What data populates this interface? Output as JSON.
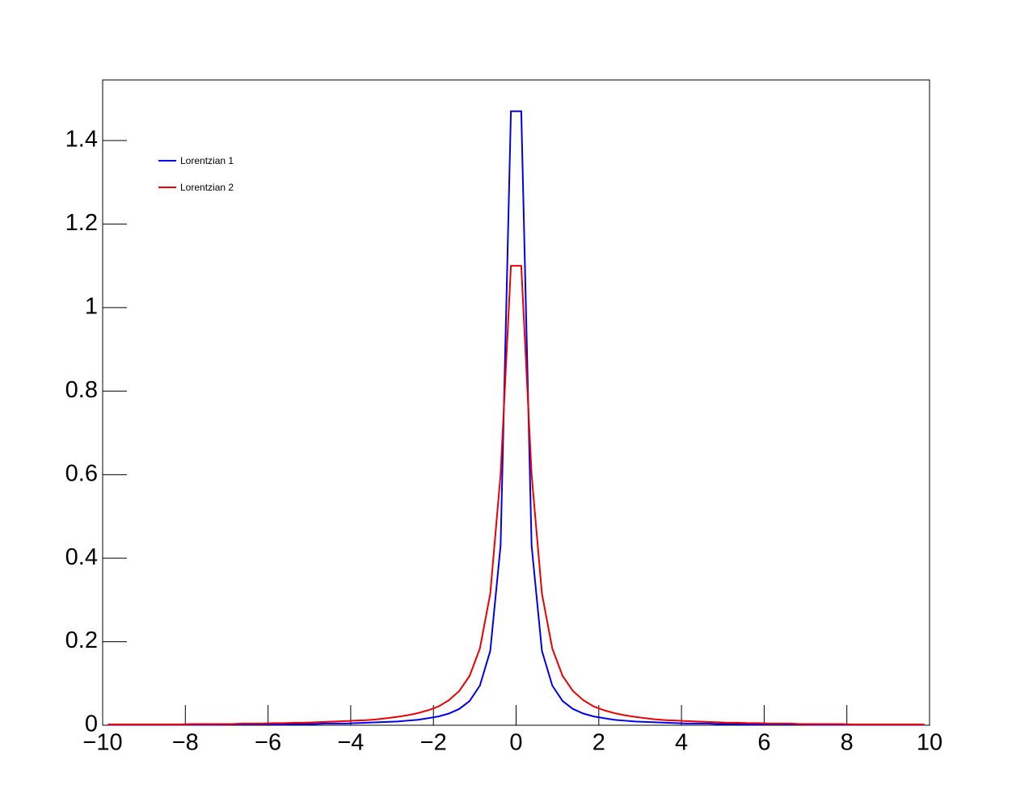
{
  "chart_data": {
    "type": "line",
    "legend": "upper left",
    "xlim": [
      -10,
      10
    ],
    "ylim": [
      0,
      1.545
    ],
    "xticks": [
      {
        "value": -10,
        "label": "−10"
      },
      {
        "value": -8,
        "label": "−8"
      },
      {
        "value": -6,
        "label": "−6"
      },
      {
        "value": -4,
        "label": "−4"
      },
      {
        "value": -2,
        "label": "−2"
      },
      0,
      2,
      4,
      6,
      8,
      10
    ],
    "yticks": [
      0,
      0.2,
      0.4,
      0.6,
      0.8,
      1,
      1.2,
      1.4
    ],
    "x": [
      -9.875,
      -9.625,
      -9.375,
      -9.125,
      -8.875,
      -8.625,
      -8.375,
      -8.125,
      -7.875,
      -7.625,
      -7.375,
      -7.125,
      -6.875,
      -6.625,
      -6.375,
      -6.125,
      -5.875,
      -5.625,
      -5.375,
      -5.125,
      -4.875,
      -4.625,
      -4.375,
      -4.125,
      -3.875,
      -3.625,
      -3.375,
      -3.125,
      -2.875,
      -2.625,
      -2.375,
      -2.125,
      -1.875,
      -1.625,
      -1.375,
      -1.125,
      -0.875,
      -0.625,
      -0.375,
      -0.125,
      0.125,
      0.375,
      0.625,
      0.875,
      1.125,
      1.375,
      1.625,
      1.875,
      2.125,
      2.375,
      2.625,
      2.875,
      3.125,
      3.375,
      3.625,
      3.875,
      4.125,
      4.375,
      4.625,
      4.875,
      5.125,
      5.375,
      5.625,
      5.875,
      6.125,
      6.375,
      6.625,
      6.875,
      7.125,
      7.375,
      7.625,
      7.875,
      8.125,
      8.375,
      8.625,
      8.875,
      9.125,
      9.375,
      9.625,
      9.875
    ],
    "series": [
      {
        "name": "Lorentzian 1",
        "color": "#0000ee",
        "values": [
          0.001,
          0.001,
          0.001,
          0.001,
          0.001,
          0.001,
          0.001,
          0.001,
          0.001,
          0.001,
          0.001,
          0.001,
          0.002,
          0.002,
          0.002,
          0.002,
          0.002,
          0.002,
          0.003,
          0.003,
          0.003,
          0.004,
          0.004,
          0.004,
          0.005,
          0.006,
          0.007,
          0.008,
          0.009,
          0.011,
          0.013,
          0.017,
          0.021,
          0.028,
          0.039,
          0.058,
          0.095,
          0.178,
          0.43,
          1.47,
          1.47,
          0.43,
          0.178,
          0.095,
          0.058,
          0.039,
          0.028,
          0.021,
          0.017,
          0.013,
          0.011,
          0.009,
          0.008,
          0.007,
          0.006,
          0.005,
          0.004,
          0.004,
          0.004,
          0.003,
          0.003,
          0.003,
          0.002,
          0.002,
          0.002,
          0.002,
          0.002,
          0.002,
          0.001,
          0.001,
          0.001,
          0.001,
          0.001,
          0.001,
          0.001,
          0.001,
          0.001,
          0.001,
          0.001,
          0.001
        ]
      },
      {
        "name": "Lorentzian 2",
        "color": "#ee0000",
        "values": [
          0.002,
          0.002,
          0.002,
          0.002,
          0.002,
          0.002,
          0.002,
          0.002,
          0.003,
          0.003,
          0.003,
          0.003,
          0.003,
          0.004,
          0.004,
          0.004,
          0.005,
          0.005,
          0.006,
          0.006,
          0.007,
          0.008,
          0.009,
          0.01,
          0.011,
          0.012,
          0.014,
          0.017,
          0.02,
          0.024,
          0.029,
          0.036,
          0.045,
          0.06,
          0.082,
          0.118,
          0.184,
          0.315,
          0.6,
          1.1,
          1.1,
          0.6,
          0.315,
          0.184,
          0.118,
          0.082,
          0.06,
          0.045,
          0.036,
          0.029,
          0.024,
          0.02,
          0.017,
          0.014,
          0.012,
          0.011,
          0.01,
          0.009,
          0.008,
          0.007,
          0.006,
          0.006,
          0.005,
          0.005,
          0.004,
          0.004,
          0.004,
          0.003,
          0.003,
          0.003,
          0.003,
          0.003,
          0.002,
          0.002,
          0.002,
          0.002,
          0.002,
          0.002,
          0.002,
          0.002
        ]
      }
    ]
  }
}
